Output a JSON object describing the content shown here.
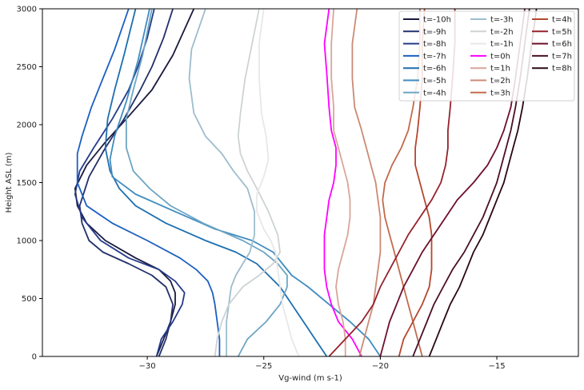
{
  "chart_data": {
    "type": "line",
    "title": "",
    "xlabel": "Vg-wind (m s-1)",
    "ylabel": "Height ASL (m)",
    "xlim": [
      -34.5,
      -11.5
    ],
    "ylim": [
      0,
      3000
    ],
    "xticks": [
      -30,
      -25,
      -20,
      -15
    ],
    "yticks": [
      0,
      500,
      1000,
      1500,
      2000,
      2500,
      3000
    ],
    "xtick_labels": [
      "−30",
      "−25",
      "−20",
      "−15"
    ],
    "ytick_labels": [
      "0",
      "500",
      "1000",
      "1500",
      "2000",
      "2500",
      "3000"
    ],
    "grid": false,
    "legend_position": "top-right",
    "legend_columns": 3,
    "series": [
      {
        "name": "t=-10h",
        "color": "#1a1a3e",
        "x": [
          -29.6,
          -29.3,
          -29.0,
          -28.8,
          -28.8,
          -29.0,
          -29.5,
          -30.5,
          -31.8,
          -32.6,
          -33.0,
          -33.1,
          -32.6,
          -31.8,
          -30.9,
          -29.8,
          -28.9,
          -28.0
        ],
        "y": [
          0,
          150,
          300,
          450,
          550,
          650,
          750,
          850,
          1000,
          1150,
          1300,
          1450,
          1650,
          1850,
          2050,
          2300,
          2600,
          3000
        ]
      },
      {
        "name": "t=-9h",
        "color": "#23306b",
        "x": [
          -29.5,
          -29.2,
          -29.0,
          -28.9,
          -29.2,
          -29.8,
          -30.8,
          -31.9,
          -32.5,
          -32.8,
          -32.9,
          -32.5,
          -31.8,
          -31.0,
          -30.3,
          -29.8,
          -29.3,
          -28.9
        ],
        "y": [
          0,
          150,
          300,
          450,
          600,
          700,
          800,
          900,
          1000,
          1150,
          1300,
          1550,
          1800,
          2050,
          2300,
          2500,
          2750,
          3000
        ]
      },
      {
        "name": "t=-8h",
        "color": "#253b8a",
        "x": [
          -29.6,
          -29.4,
          -28.9,
          -28.5,
          -28.4,
          -28.8,
          -29.5,
          -30.8,
          -32.0,
          -32.8,
          -33.1,
          -32.9,
          -32.3,
          -31.5,
          -30.8,
          -30.4,
          -30.0,
          -29.7
        ],
        "y": [
          0,
          150,
          300,
          450,
          550,
          650,
          750,
          850,
          1000,
          1200,
          1400,
          1600,
          1800,
          2050,
          2300,
          2500,
          2750,
          3000
        ]
      },
      {
        "name": "t=-7h",
        "color": "#1b5fc1",
        "x": [
          -26.9,
          -26.9,
          -27.0,
          -27.1,
          -27.2,
          -27.4,
          -27.9,
          -28.6,
          -30.0,
          -31.5,
          -32.6,
          -33.0,
          -33.0,
          -32.8,
          -32.4,
          -31.9,
          -31.4,
          -30.8
        ],
        "y": [
          0,
          150,
          300,
          450,
          550,
          650,
          750,
          850,
          1000,
          1150,
          1300,
          1500,
          1750,
          1900,
          2150,
          2400,
          2650,
          3000
        ]
      },
      {
        "name": "t=-6h",
        "color": "#1d6fb0",
        "x": [
          -22.3,
          -22.8,
          -23.3,
          -23.8,
          -24.3,
          -24.8,
          -25.3,
          -26.2,
          -27.5,
          -29.2,
          -30.5,
          -31.2,
          -31.6,
          -31.8,
          -31.7,
          -31.4,
          -31.0,
          -30.5
        ],
        "y": [
          0,
          150,
          300,
          450,
          600,
          700,
          800,
          900,
          1000,
          1150,
          1300,
          1450,
          1600,
          1800,
          2050,
          2300,
          2600,
          3000
        ]
      },
      {
        "name": "t=-5h",
        "color": "#3f8cc0",
        "x": [
          -20.0,
          -20.5,
          -21.3,
          -22.2,
          -23.1,
          -23.8,
          -24.2,
          -24.6,
          -25.5,
          -27.1,
          -28.8,
          -30.5,
          -31.5,
          -31.6,
          -31.4,
          -30.9,
          -30.4,
          -29.9
        ],
        "y": [
          0,
          150,
          300,
          450,
          600,
          700,
          800,
          900,
          1000,
          1100,
          1250,
          1400,
          1550,
          1700,
          1900,
          2200,
          2550,
          3000
        ]
      },
      {
        "name": "t=-4h",
        "color": "#6ea6c4",
        "x": [
          -26.1,
          -25.7,
          -24.9,
          -24.3,
          -24.0,
          -24.0,
          -24.4,
          -25.0,
          -25.9,
          -27.6,
          -29.0,
          -29.9,
          -30.6,
          -30.9,
          -30.9,
          -30.6,
          -30.2,
          -29.8
        ],
        "y": [
          0,
          150,
          300,
          450,
          600,
          700,
          800,
          900,
          1000,
          1150,
          1300,
          1450,
          1600,
          1800,
          2050,
          2300,
          2600,
          3000
        ]
      },
      {
        "name": "t=-3h",
        "color": "#9dbdcc",
        "x": [
          -26.6,
          -26.6,
          -26.6,
          -26.5,
          -26.4,
          -26.2,
          -25.9,
          -25.6,
          -25.4,
          -25.4,
          -25.7,
          -26.3,
          -26.8,
          -27.5,
          -28.0,
          -28.2,
          -28.1,
          -27.5
        ],
        "y": [
          0,
          150,
          300,
          450,
          600,
          700,
          800,
          900,
          1050,
          1250,
          1450,
          1600,
          1750,
          1900,
          2100,
          2400,
          2650,
          3000
        ]
      },
      {
        "name": "t=-2h",
        "color": "#cdd3d5",
        "x": [
          -27.1,
          -27.0,
          -26.8,
          -26.5,
          -25.9,
          -25.2,
          -24.6,
          -24.3,
          -24.4,
          -24.8,
          -25.3,
          -25.7,
          -26.0,
          -26.1,
          -26.0,
          -25.8,
          -25.5,
          -25.2
        ],
        "y": [
          0,
          150,
          300,
          450,
          600,
          700,
          800,
          900,
          1050,
          1250,
          1450,
          1600,
          1750,
          1900,
          2100,
          2400,
          2700,
          3000
        ]
      },
      {
        "name": "t=-1h",
        "color": "#e8e8e8",
        "x": [
          -23.5,
          -23.8,
          -24.0,
          -24.2,
          -24.3,
          -24.4,
          -24.5,
          -24.7,
          -25.0,
          -25.3,
          -25.3,
          -25.0,
          -24.8,
          -24.9,
          -25.1,
          -25.2,
          -25.2,
          -25.0
        ],
        "y": [
          0,
          150,
          300,
          450,
          600,
          750,
          900,
          1000,
          1100,
          1250,
          1400,
          1550,
          1700,
          1900,
          2100,
          2400,
          2700,
          3000
        ]
      },
      {
        "name": "t=0h",
        "color": "#ff00ff",
        "x": [
          -20.8,
          -21.2,
          -21.8,
          -22.1,
          -22.3,
          -22.4,
          -22.4,
          -22.4,
          -22.3,
          -22.2,
          -22.0,
          -21.9,
          -21.9,
          -22.1,
          -22.2,
          -22.3,
          -22.4,
          -22.2
        ],
        "y": [
          0,
          150,
          300,
          450,
          600,
          750,
          900,
          1050,
          1200,
          1350,
          1500,
          1650,
          1800,
          1950,
          2150,
          2450,
          2700,
          3000
        ]
      },
      {
        "name": "t=1h",
        "color": "#d9a59a",
        "x": [
          -21.5,
          -21.5,
          -21.6,
          -21.8,
          -21.9,
          -21.8,
          -21.6,
          -21.4,
          -21.3,
          -21.3,
          -21.4,
          -21.6,
          -21.8,
          -22.0,
          -22.0,
          -22.1,
          -22.1,
          -22.0
        ],
        "y": [
          0,
          150,
          300,
          450,
          600,
          750,
          900,
          1050,
          1200,
          1350,
          1500,
          1650,
          1800,
          1950,
          2150,
          2400,
          2700,
          3000
        ]
      },
      {
        "name": "t=2h",
        "color": "#cc8a74",
        "x": [
          -20.9,
          -20.7,
          -20.5,
          -20.3,
          -20.2,
          -20.1,
          -20.0,
          -20.0,
          -20.0,
          -20.1,
          -20.2,
          -20.4,
          -20.6,
          -20.8,
          -21.1,
          -21.2,
          -21.2,
          -21.0
        ],
        "y": [
          0,
          150,
          300,
          450,
          600,
          750,
          900,
          1050,
          1200,
          1350,
          1500,
          1650,
          1800,
          1950,
          2150,
          2400,
          2700,
          3000
        ]
      },
      {
        "name": "t=3h",
        "color": "#c26a4e",
        "x": [
          -18.2,
          -18.4,
          -18.6,
          -18.8,
          -19.0,
          -19.2,
          -19.4,
          -19.6,
          -19.8,
          -19.9,
          -19.8,
          -19.5,
          -19.1,
          -18.8,
          -18.6,
          -18.4,
          -18.3,
          -18.3
        ],
        "y": [
          0,
          150,
          300,
          450,
          600,
          750,
          900,
          1050,
          1200,
          1350,
          1500,
          1650,
          1800,
          1950,
          2150,
          2400,
          2700,
          3000
        ]
      },
      {
        "name": "t=4h",
        "color": "#b5472f",
        "x": [
          -19.2,
          -19.0,
          -18.6,
          -18.2,
          -17.9,
          -17.8,
          -17.8,
          -17.8,
          -17.9,
          -18.1,
          -18.3,
          -18.5,
          -18.5,
          -18.4,
          -18.3,
          -18.2,
          -18.2,
          -18.1
        ],
        "y": [
          0,
          150,
          300,
          450,
          600,
          750,
          900,
          1050,
          1200,
          1350,
          1500,
          1650,
          1800,
          1950,
          2150,
          2400,
          2700,
          3000
        ]
      },
      {
        "name": "t=5h",
        "color": "#96222c",
        "x": [
          -22.2,
          -21.5,
          -20.8,
          -20.3,
          -20.0,
          -19.6,
          -19.2,
          -18.8,
          -18.3,
          -17.8,
          -17.4,
          -17.2,
          -17.1,
          -17.1,
          -17.0,
          -16.9,
          -16.8,
          -16.8
        ],
        "y": [
          0,
          150,
          300,
          450,
          600,
          750,
          900,
          1050,
          1200,
          1350,
          1500,
          1650,
          1800,
          1950,
          2150,
          2400,
          2700,
          3000
        ]
      },
      {
        "name": "t=6h",
        "color": "#6e0f2a",
        "x": [
          -20.0,
          -19.8,
          -19.6,
          -19.3,
          -19.0,
          -18.6,
          -18.2,
          -17.7,
          -17.2,
          -16.7,
          -16.0,
          -15.4,
          -15.0,
          -14.7,
          -14.4,
          -14.2,
          -14.0,
          -13.8
        ],
        "y": [
          0,
          150,
          300,
          450,
          600,
          750,
          900,
          1050,
          1200,
          1350,
          1500,
          1650,
          1800,
          1950,
          2150,
          2400,
          2700,
          3000
        ]
      },
      {
        "name": "t=7h",
        "color": "#4a0f26",
        "x": [
          -18.6,
          -18.3,
          -18.0,
          -17.7,
          -17.3,
          -16.9,
          -16.4,
          -16.0,
          -15.6,
          -15.3,
          -15.0,
          -14.8,
          -14.6,
          -14.4,
          -14.2,
          -14.0,
          -13.8,
          -13.6
        ],
        "y": [
          0,
          150,
          300,
          450,
          600,
          750,
          900,
          1050,
          1200,
          1350,
          1500,
          1650,
          1800,
          1950,
          2150,
          2400,
          2700,
          3000
        ]
      },
      {
        "name": "t=8h",
        "color": "#2a0813",
        "x": [
          -17.9,
          -17.6,
          -17.3,
          -17.0,
          -16.6,
          -16.3,
          -16.0,
          -15.6,
          -15.3,
          -15.0,
          -14.7,
          -14.5,
          -14.3,
          -14.1,
          -13.9,
          -13.7,
          -13.5,
          -13.3
        ],
        "y": [
          0,
          150,
          300,
          450,
          600,
          750,
          900,
          1050,
          1200,
          1350,
          1500,
          1650,
          1800,
          1950,
          2150,
          2400,
          2700,
          3000
        ]
      }
    ]
  }
}
